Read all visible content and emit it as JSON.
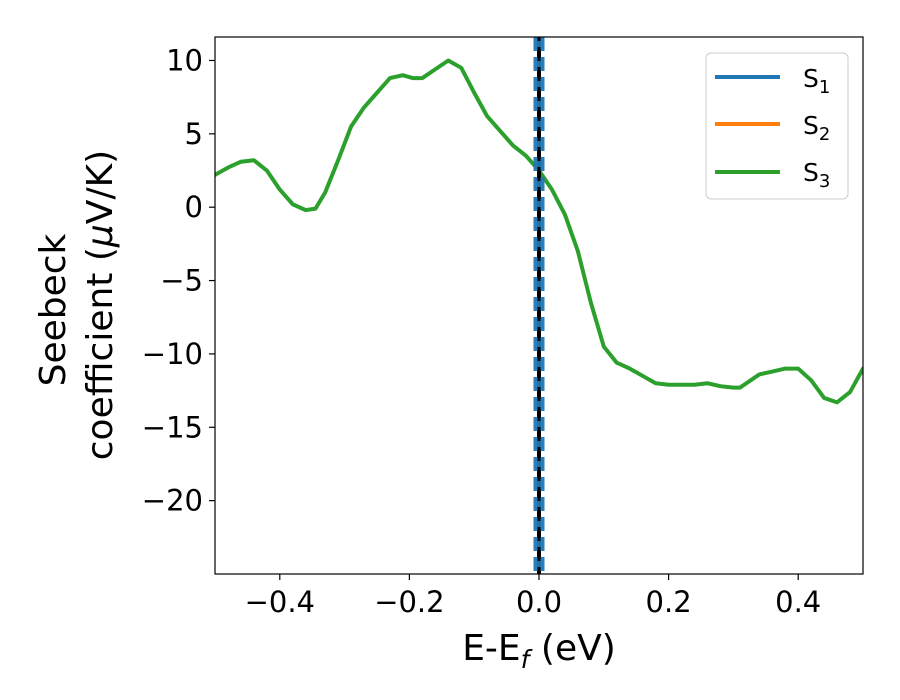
{
  "chart_data": {
    "type": "line",
    "xlabel": {
      "base": "E-E",
      "sub": "f",
      "unit": " (eV)"
    },
    "ylabel": {
      "line1": "Seebeck",
      "line2_prefix": "coefficient  (",
      "mu": "μ",
      "line2_suffix": "V/K)"
    },
    "xlim": [
      -0.5,
      0.5
    ],
    "ylim": [
      -25,
      11.6
    ],
    "xticks": [
      -0.4,
      -0.2,
      0.0,
      0.2,
      0.4
    ],
    "xtick_labels": [
      "−0.4",
      "−0.2",
      "0.0",
      "0.2",
      "0.4"
    ],
    "yticks": [
      10,
      5,
      0,
      -5,
      -10,
      -15,
      -20
    ],
    "ytick_labels": [
      "10",
      "5",
      "0",
      "−5",
      "−10",
      "−15",
      "−20"
    ],
    "grid": false,
    "legend_position": "top-right",
    "fermi_level": {
      "x": 0.0,
      "inner_color": "#000000",
      "outer_color": "#1f77b4"
    },
    "series": [
      {
        "name": "S",
        "sub": "1",
        "color": "#1f77b4",
        "x": [],
        "y": []
      },
      {
        "name": "S",
        "sub": "2",
        "color": "#ff7f0e",
        "x": [],
        "y": []
      },
      {
        "name": "S",
        "sub": "3",
        "color": "#2ca02c",
        "x": [
          -0.5,
          -0.48,
          -0.46,
          -0.44,
          -0.42,
          -0.4,
          -0.38,
          -0.36,
          -0.345,
          -0.33,
          -0.31,
          -0.29,
          -0.27,
          -0.25,
          -0.23,
          -0.21,
          -0.195,
          -0.18,
          -0.16,
          -0.14,
          -0.12,
          -0.1,
          -0.08,
          -0.06,
          -0.04,
          -0.02,
          0.0,
          0.02,
          0.04,
          0.06,
          0.08,
          0.1,
          0.12,
          0.14,
          0.16,
          0.18,
          0.2,
          0.22,
          0.24,
          0.26,
          0.28,
          0.3,
          0.31,
          0.32,
          0.34,
          0.36,
          0.38,
          0.4,
          0.42,
          0.44,
          0.46,
          0.48,
          0.5
        ],
        "y": [
          2.2,
          2.7,
          3.1,
          3.2,
          2.5,
          1.2,
          0.2,
          -0.2,
          -0.1,
          1.0,
          3.2,
          5.5,
          6.8,
          7.8,
          8.8,
          9.0,
          8.8,
          8.8,
          9.4,
          10.0,
          9.5,
          7.8,
          6.2,
          5.2,
          4.2,
          3.5,
          2.5,
          1.2,
          -0.5,
          -3.0,
          -6.5,
          -9.5,
          -10.6,
          -11.0,
          -11.5,
          -12.0,
          -12.1,
          -12.1,
          -12.1,
          -12.0,
          -12.2,
          -12.3,
          -12.3,
          -12.0,
          -11.4,
          -11.2,
          -11.0,
          -11.0,
          -11.8,
          -13.0,
          -13.3,
          -12.6,
          -11.0
        ]
      }
    ]
  }
}
